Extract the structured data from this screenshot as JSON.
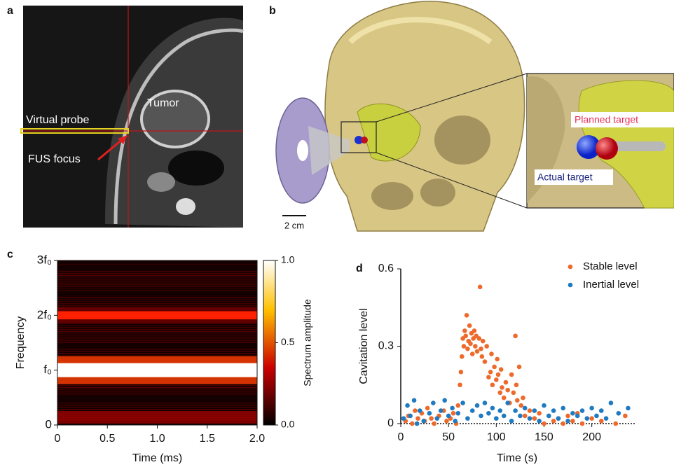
{
  "panel_labels": [
    "a",
    "b",
    "c",
    "d"
  ],
  "mri": {
    "tumor": "Tumor",
    "virtual_probe": "Virtual probe",
    "fus_focus": "FUS focus"
  },
  "skull": {
    "scale_bar": "2 cm",
    "planned_target": "Planned target",
    "actual_target": "Actual target"
  },
  "chart_data": [
    {
      "type": "spectrogram",
      "xlabel": "Time (ms)",
      "ylabel": "Frequency",
      "xlim": [
        0,
        2
      ],
      "xticks": [
        0,
        0.5,
        {
          "value": 1,
          "label": "1.0"
        },
        1.5,
        {
          "value": 2,
          "label": "2.0"
        }
      ],
      "ylim": [
        0,
        3
      ],
      "yticks": [
        0,
        {
          "value": 1,
          "label": "f₀"
        },
        {
          "value": 2,
          "label": "2f₀"
        },
        {
          "value": 3,
          "label": "3f₀"
        }
      ],
      "colorbar": {
        "label": "Spectrum amplitude",
        "lim": [
          0,
          1
        ],
        "ticks": [
          {
            "value": 0,
            "label": "0.0"
          },
          0.5,
          {
            "value": 1,
            "label": "1.0"
          }
        ]
      },
      "bands": {
        "frequency": [
          1,
          2
        ],
        "amplitude": [
          1,
          0.4
        ]
      }
    },
    {
      "type": "scatter",
      "xlabel": "Time (s)",
      "ylabel": "Cavitation level",
      "xlim": [
        0,
        245
      ],
      "xticks": [
        0,
        50,
        100,
        150,
        200
      ],
      "ylim": [
        0,
        0.6
      ],
      "yticks": [
        0,
        0.3,
        0.6
      ],
      "series": [
        {
          "name": "Stable level",
          "color": "#ee6a2c",
          "x": [
            5,
            8,
            12,
            15,
            18,
            22,
            25,
            28,
            32,
            35,
            40,
            45,
            48,
            52,
            55,
            58,
            60,
            62,
            63,
            64,
            65,
            66,
            67,
            68,
            69,
            70,
            71,
            72,
            73,
            74,
            75,
            76,
            77,
            78,
            79,
            80,
            82,
            83,
            84,
            85,
            86,
            88,
            90,
            92,
            94,
            95,
            96,
            98,
            100,
            101,
            102,
            104,
            105,
            106,
            108,
            110,
            112,
            114,
            116,
            118,
            120,
            121,
            122,
            124,
            126,
            128,
            130,
            135,
            140,
            145,
            150,
            155,
            160,
            165,
            170,
            175,
            180,
            185,
            190,
            200,
            210,
            225,
            235
          ],
          "values": [
            0.01,
            0.03,
            0,
            0.05,
            0.02,
            0.04,
            0.01,
            0.06,
            0.02,
            0,
            0.03,
            0.05,
            0.01,
            0.02,
            0.04,
            0,
            0.07,
            0.15,
            0.2,
            0.26,
            0.33,
            0.3,
            0.36,
            0.34,
            0.42,
            0.29,
            0.32,
            0.38,
            0.31,
            0.35,
            0.27,
            0.33,
            0.36,
            0.3,
            0.34,
            0.28,
            0.33,
            0.53,
            0.29,
            0.26,
            0.32,
            0.24,
            0.3,
            0.18,
            0.2,
            0.27,
            0.15,
            0.22,
            0.17,
            0.25,
            0.19,
            0.12,
            0.21,
            0.14,
            0.1,
            0.16,
            0.13,
            0.08,
            0.19,
            0.12,
            0.34,
            0.15,
            0.09,
            0.22,
            0.07,
            0.1,
            0.03,
            0.05,
            0.02,
            0.04,
            0,
            0.03,
            0.01,
            0.02,
            0,
            0.03,
            0.01,
            0.04,
            0,
            0.02,
            0.01,
            0,
            0.03
          ]
        },
        {
          "name": "Inertial level",
          "color": "#1f7bc1",
          "x": [
            3,
            7,
            10,
            14,
            17,
            20,
            24,
            30,
            34,
            38,
            42,
            46,
            50,
            54,
            57,
            60,
            65,
            70,
            75,
            80,
            84,
            88,
            92,
            96,
            100,
            104,
            108,
            112,
            116,
            120,
            125,
            130,
            135,
            140,
            145,
            150,
            155,
            160,
            165,
            170,
            175,
            180,
            185,
            190,
            195,
            200,
            205,
            210,
            215,
            220,
            228,
            238
          ],
          "values": [
            0.02,
            0.07,
            0.03,
            0.09,
            0,
            0.05,
            0.01,
            0.04,
            0.08,
            0.02,
            0.05,
            0.09,
            0.03,
            0.06,
            0.01,
            0.04,
            0.08,
            0.02,
            0.05,
            0.07,
            0.03,
            0.08,
            0.04,
            0.06,
            0.02,
            0.05,
            0.03,
            0.08,
            0.01,
            0.05,
            0.03,
            0.06,
            0.02,
            0.05,
            0.01,
            0.07,
            0.03,
            0.05,
            0.02,
            0.06,
            0.01,
            0.04,
            0.03,
            0.05,
            0.02,
            0.06,
            0.03,
            0.05,
            0.02,
            0.08,
            0.04,
            0.06
          ]
        }
      ]
    }
  ]
}
